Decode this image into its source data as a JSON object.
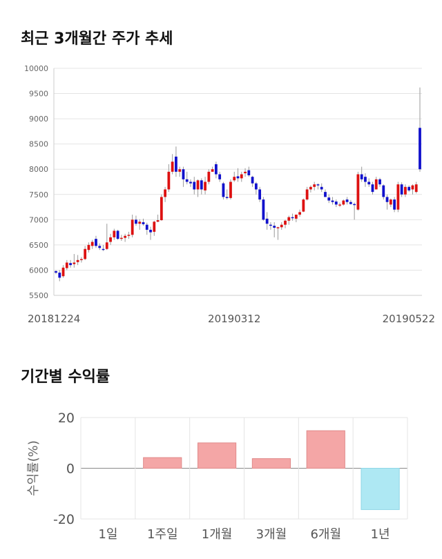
{
  "section1": {
    "title": "최근 3개월간 주가 추세"
  },
  "section2": {
    "title": "기간별 수익률"
  },
  "colors": {
    "up": "#dd1111",
    "down": "#1111cc",
    "wick": "#999999",
    "pos_bar": "#f4a6a6",
    "neg_bar": "#aee8f3",
    "grid": "#e4e4e4"
  },
  "chart_data": [
    {
      "type": "candlestick",
      "title": "최근 3개월간 주가 추세",
      "ylim": [
        5500,
        10000
      ],
      "y_ticks": [
        10000,
        9500,
        9000,
        8500,
        8000,
        7500,
        7000,
        6500,
        6000,
        5500
      ],
      "x_tick_labels": [
        "20181224",
        "20190312",
        "20190522"
      ],
      "x_tick_index": [
        0,
        49,
        100
      ],
      "candles": [
        [
          5980,
          6000,
          5920,
          5950
        ],
        [
          5950,
          6000,
          5780,
          5850
        ],
        [
          5880,
          6100,
          5850,
          6050
        ],
        [
          6040,
          6200,
          6000,
          6150
        ],
        [
          6140,
          6200,
          6050,
          6100
        ],
        [
          6120,
          6320,
          6050,
          6150
        ],
        [
          6160,
          6300,
          6100,
          6200
        ],
        [
          6200,
          6260,
          6150,
          6220
        ],
        [
          6220,
          6480,
          6200,
          6420
        ],
        [
          6400,
          6550,
          6350,
          6500
        ],
        [
          6480,
          6600,
          6420,
          6560
        ],
        [
          6620,
          6680,
          6440,
          6480
        ],
        [
          6480,
          6530,
          6400,
          6440
        ],
        [
          6420,
          6500,
          6380,
          6400
        ],
        [
          6420,
          6920,
          6400,
          6550
        ],
        [
          6560,
          6720,
          6500,
          6650
        ],
        [
          6650,
          6820,
          6600,
          6780
        ],
        [
          6780,
          6800,
          6600,
          6620
        ],
        [
          6620,
          6700,
          6580,
          6640
        ],
        [
          6640,
          6720,
          6560,
          6680
        ],
        [
          6680,
          6760,
          6620,
          6700
        ],
        [
          6700,
          7100,
          6650,
          7000
        ],
        [
          7000,
          7080,
          6880,
          6920
        ],
        [
          6920,
          7010,
          6800,
          6960
        ],
        [
          6950,
          7020,
          6880,
          6910
        ],
        [
          6900,
          6940,
          6700,
          6800
        ],
        [
          6800,
          6860,
          6600,
          6750
        ],
        [
          6760,
          6980,
          6680,
          6960
        ],
        [
          6960,
          7100,
          6950,
          6990
        ],
        [
          6990,
          7500,
          6980,
          7450
        ],
        [
          7450,
          7650,
          7350,
          7600
        ],
        [
          7600,
          8100,
          7550,
          7950
        ],
        [
          7950,
          8300,
          7900,
          8150
        ],
        [
          8250,
          8450,
          7850,
          7950
        ],
        [
          7950,
          8050,
          7850,
          8000
        ],
        [
          8000,
          8050,
          7650,
          7800
        ],
        [
          7800,
          7950,
          7700,
          7750
        ],
        [
          7750,
          7800,
          7650,
          7720
        ],
        [
          7750,
          7850,
          7500,
          7600
        ],
        [
          7600,
          7800,
          7450,
          7780
        ],
        [
          7780,
          7820,
          7500,
          7600
        ],
        [
          7580,
          7850,
          7500,
          7750
        ],
        [
          7750,
          8000,
          7700,
          7950
        ],
        [
          7950,
          8050,
          7950,
          8000
        ],
        [
          8100,
          8150,
          7820,
          7900
        ],
        [
          7900,
          7950,
          7750,
          7800
        ],
        [
          7720,
          7750,
          7400,
          7450
        ],
        [
          7450,
          7600,
          7400,
          7430
        ],
        [
          7430,
          7800,
          7400,
          7750
        ],
        [
          7780,
          7950,
          7750,
          7850
        ],
        [
          7860,
          8020,
          7750,
          7820
        ],
        [
          7820,
          7950,
          7750,
          7900
        ],
        [
          7920,
          8020,
          7850,
          7950
        ],
        [
          7980,
          8050,
          7850,
          7880
        ],
        [
          7850,
          7870,
          7650,
          7720
        ],
        [
          7720,
          7750,
          7500,
          7600
        ],
        [
          7600,
          7650,
          7350,
          7400
        ],
        [
          7400,
          7450,
          6980,
          7000
        ],
        [
          7020,
          7150,
          6800,
          6920
        ],
        [
          6900,
          6950,
          6800,
          6880
        ],
        [
          6880,
          6950,
          6650,
          6840
        ],
        [
          6840,
          6860,
          6600,
          6850
        ],
        [
          6850,
          6950,
          6800,
          6900
        ],
        [
          6900,
          7000,
          6830,
          6980
        ],
        [
          6980,
          7080,
          6900,
          7050
        ],
        [
          7050,
          7120,
          6980,
          7030
        ],
        [
          7020,
          7100,
          6950,
          7100
        ],
        [
          7100,
          7200,
          7060,
          7150
        ],
        [
          7160,
          7420,
          7150,
          7400
        ],
        [
          7400,
          7650,
          7380,
          7600
        ],
        [
          7600,
          7680,
          7540,
          7650
        ],
        [
          7650,
          7750,
          7580,
          7700
        ],
        [
          7700,
          7720,
          7600,
          7680
        ],
        [
          7650,
          7720,
          7550,
          7600
        ],
        [
          7550,
          7600,
          7450,
          7450
        ],
        [
          7440,
          7500,
          7330,
          7380
        ],
        [
          7380,
          7450,
          7300,
          7350
        ],
        [
          7360,
          7400,
          7250,
          7300
        ],
        [
          7300,
          7340,
          7250,
          7300
        ],
        [
          7300,
          7400,
          7280,
          7380
        ],
        [
          7400,
          7450,
          7300,
          7350
        ],
        [
          7350,
          7390,
          7300,
          7310
        ],
        [
          7310,
          7340,
          7000,
          7300
        ],
        [
          7200,
          7950,
          7180,
          7900
        ],
        [
          7900,
          8050,
          7750,
          7800
        ],
        [
          7850,
          7920,
          7650,
          7750
        ],
        [
          7750,
          7820,
          7650,
          7700
        ],
        [
          7700,
          7750,
          7500,
          7550
        ],
        [
          7600,
          7850,
          7600,
          7800
        ],
        [
          7800,
          7830,
          7650,
          7700
        ],
        [
          7680,
          7700,
          7400,
          7450
        ],
        [
          7450,
          7500,
          7200,
          7350
        ],
        [
          7300,
          7420,
          7250,
          7400
        ],
        [
          7400,
          7450,
          7150,
          7200
        ],
        [
          7200,
          7750,
          7150,
          7700
        ],
        [
          7700,
          7740,
          7450,
          7500
        ],
        [
          7500,
          7700,
          7450,
          7650
        ],
        [
          7650,
          7680,
          7550,
          7580
        ],
        [
          7600,
          7700,
          7500,
          7680
        ],
        [
          7550,
          7750,
          7520,
          7700
        ],
        [
          8820,
          9620,
          7950,
          8000
        ]
      ]
    },
    {
      "type": "bar",
      "title": "기간별 수익률",
      "ylabel": "수익률(%)",
      "ylim": [
        -20,
        20
      ],
      "y_ticks": [
        20,
        0,
        -20
      ],
      "categories": [
        "1일",
        "1주일",
        "1개월",
        "3개월",
        "6개월",
        "1년"
      ],
      "values": [
        0,
        4.2,
        10,
        3.8,
        14.8,
        -16.3
      ]
    }
  ]
}
